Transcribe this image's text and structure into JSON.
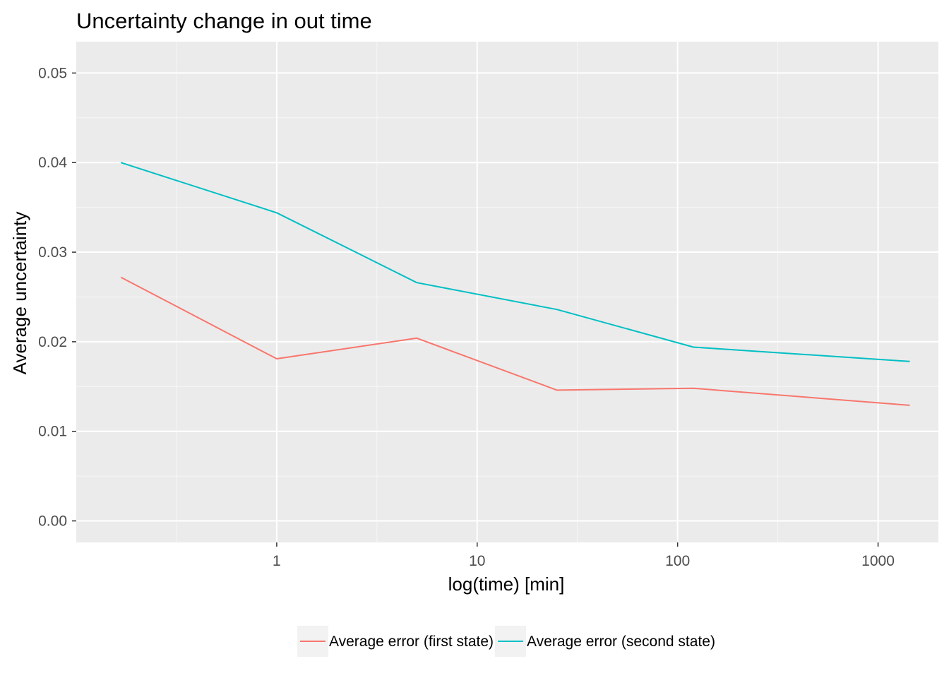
{
  "chart_data": {
    "type": "line",
    "title": "Uncertainty change in out time",
    "xlabel": "log(time) [min]",
    "ylabel": "Average uncertainty",
    "x_scale": "log10",
    "xlim": [
      0.1,
      2000
    ],
    "ylim": [
      -0.0024,
      0.0535
    ],
    "x_ticks": [
      1,
      10,
      100,
      1000
    ],
    "x_tick_labels": [
      "1",
      "10",
      "100",
      "1000"
    ],
    "y_ticks": [
      0,
      0.01,
      0.02,
      0.03,
      0.04,
      0.05
    ],
    "y_tick_labels": [
      "0.00",
      "0.01",
      "0.02",
      "0.03",
      "0.04",
      "0.05"
    ],
    "grid": true,
    "legend_position": "bottom",
    "x": [
      0.167,
      1,
      5,
      25,
      120,
      1440
    ],
    "series": [
      {
        "name": "Average error (first state)",
        "color": "#F8766D",
        "values": [
          0.0272,
          0.0181,
          0.0204,
          0.0146,
          0.0148,
          0.0129
        ]
      },
      {
        "name": "Average error (second state)",
        "color": "#00BFC4",
        "values": [
          0.04,
          0.0344,
          0.0266,
          0.0236,
          0.0194,
          0.0178
        ]
      }
    ]
  },
  "colors": {
    "panel_background": "#EBEBEB",
    "grid_major": "#FFFFFF",
    "legend_key_background": "#F2F2F2"
  }
}
